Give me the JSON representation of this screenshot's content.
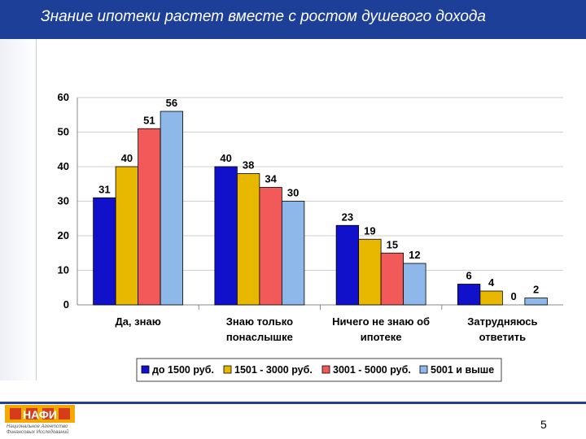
{
  "slide": {
    "title": "Знание ипотеки растет вместе с ростом душевого дохода",
    "page_number": "5",
    "logo_text": "НАФИ",
    "logo_caption_1": "Национальное Агентство",
    "logo_caption_2": "Финансовых Исследований"
  },
  "chart_data": {
    "type": "bar",
    "categories": [
      [
        "Да, знаю"
      ],
      [
        "Знаю только",
        "понаслышке"
      ],
      [
        "Ничего не знаю об",
        "ипотеке"
      ],
      [
        "Затрудняюсь",
        "ответить"
      ]
    ],
    "series": [
      {
        "name": "до 1500 руб.",
        "values": [
          31,
          40,
          23,
          6
        ],
        "color": "#1111cc"
      },
      {
        "name": "1501 - 3000 руб.",
        "values": [
          40,
          38,
          19,
          4
        ],
        "color": "#e8b800"
      },
      {
        "name": "3001 - 5000 руб.",
        "values": [
          51,
          34,
          15,
          0
        ],
        "color": "#f25a5a"
      },
      {
        "name": "5001 и выше",
        "values": [
          56,
          30,
          12,
          2
        ],
        "color": "#8fb8ea"
      }
    ],
    "ylim": [
      0,
      60
    ],
    "yticks": [
      0,
      10,
      20,
      30,
      40,
      50,
      60
    ],
    "grid": true,
    "legend": "bottom"
  }
}
